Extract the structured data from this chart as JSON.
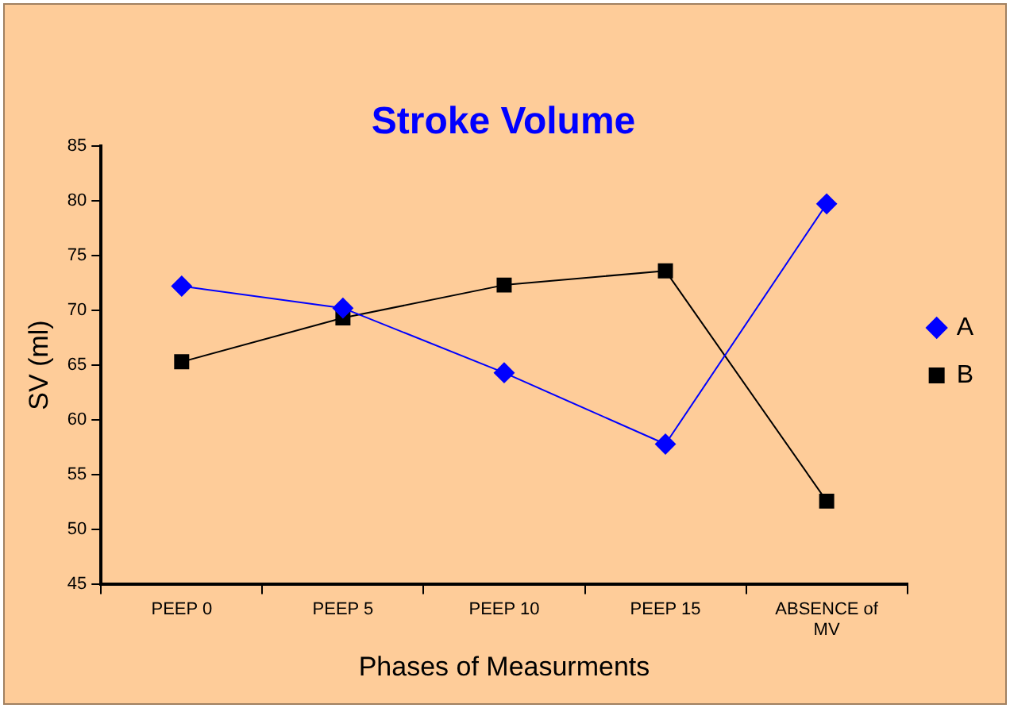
{
  "chart_data": {
    "type": "line",
    "title": "Stroke Volume",
    "xlabel": "Phases of Measurments",
    "ylabel": "SV (ml)",
    "categories": [
      "PEEP 0",
      "PEEP 5",
      "PEEP 10",
      "PEEP 15",
      "ABSENCE of MV"
    ],
    "series": [
      {
        "name": "A",
        "color": "#0000ff",
        "marker": "diamond",
        "values": [
          72.2,
          70.2,
          64.3,
          57.8,
          79.7
        ]
      },
      {
        "name": "B",
        "color": "#000000",
        "marker": "square",
        "values": [
          65.3,
          69.3,
          72.3,
          73.6,
          52.6
        ]
      }
    ],
    "ylim": [
      45,
      85
    ],
    "yticks": [
      45,
      50,
      55,
      60,
      65,
      70,
      75,
      80,
      85
    ],
    "grid": false,
    "legend": "right",
    "line_style": "solid"
  }
}
